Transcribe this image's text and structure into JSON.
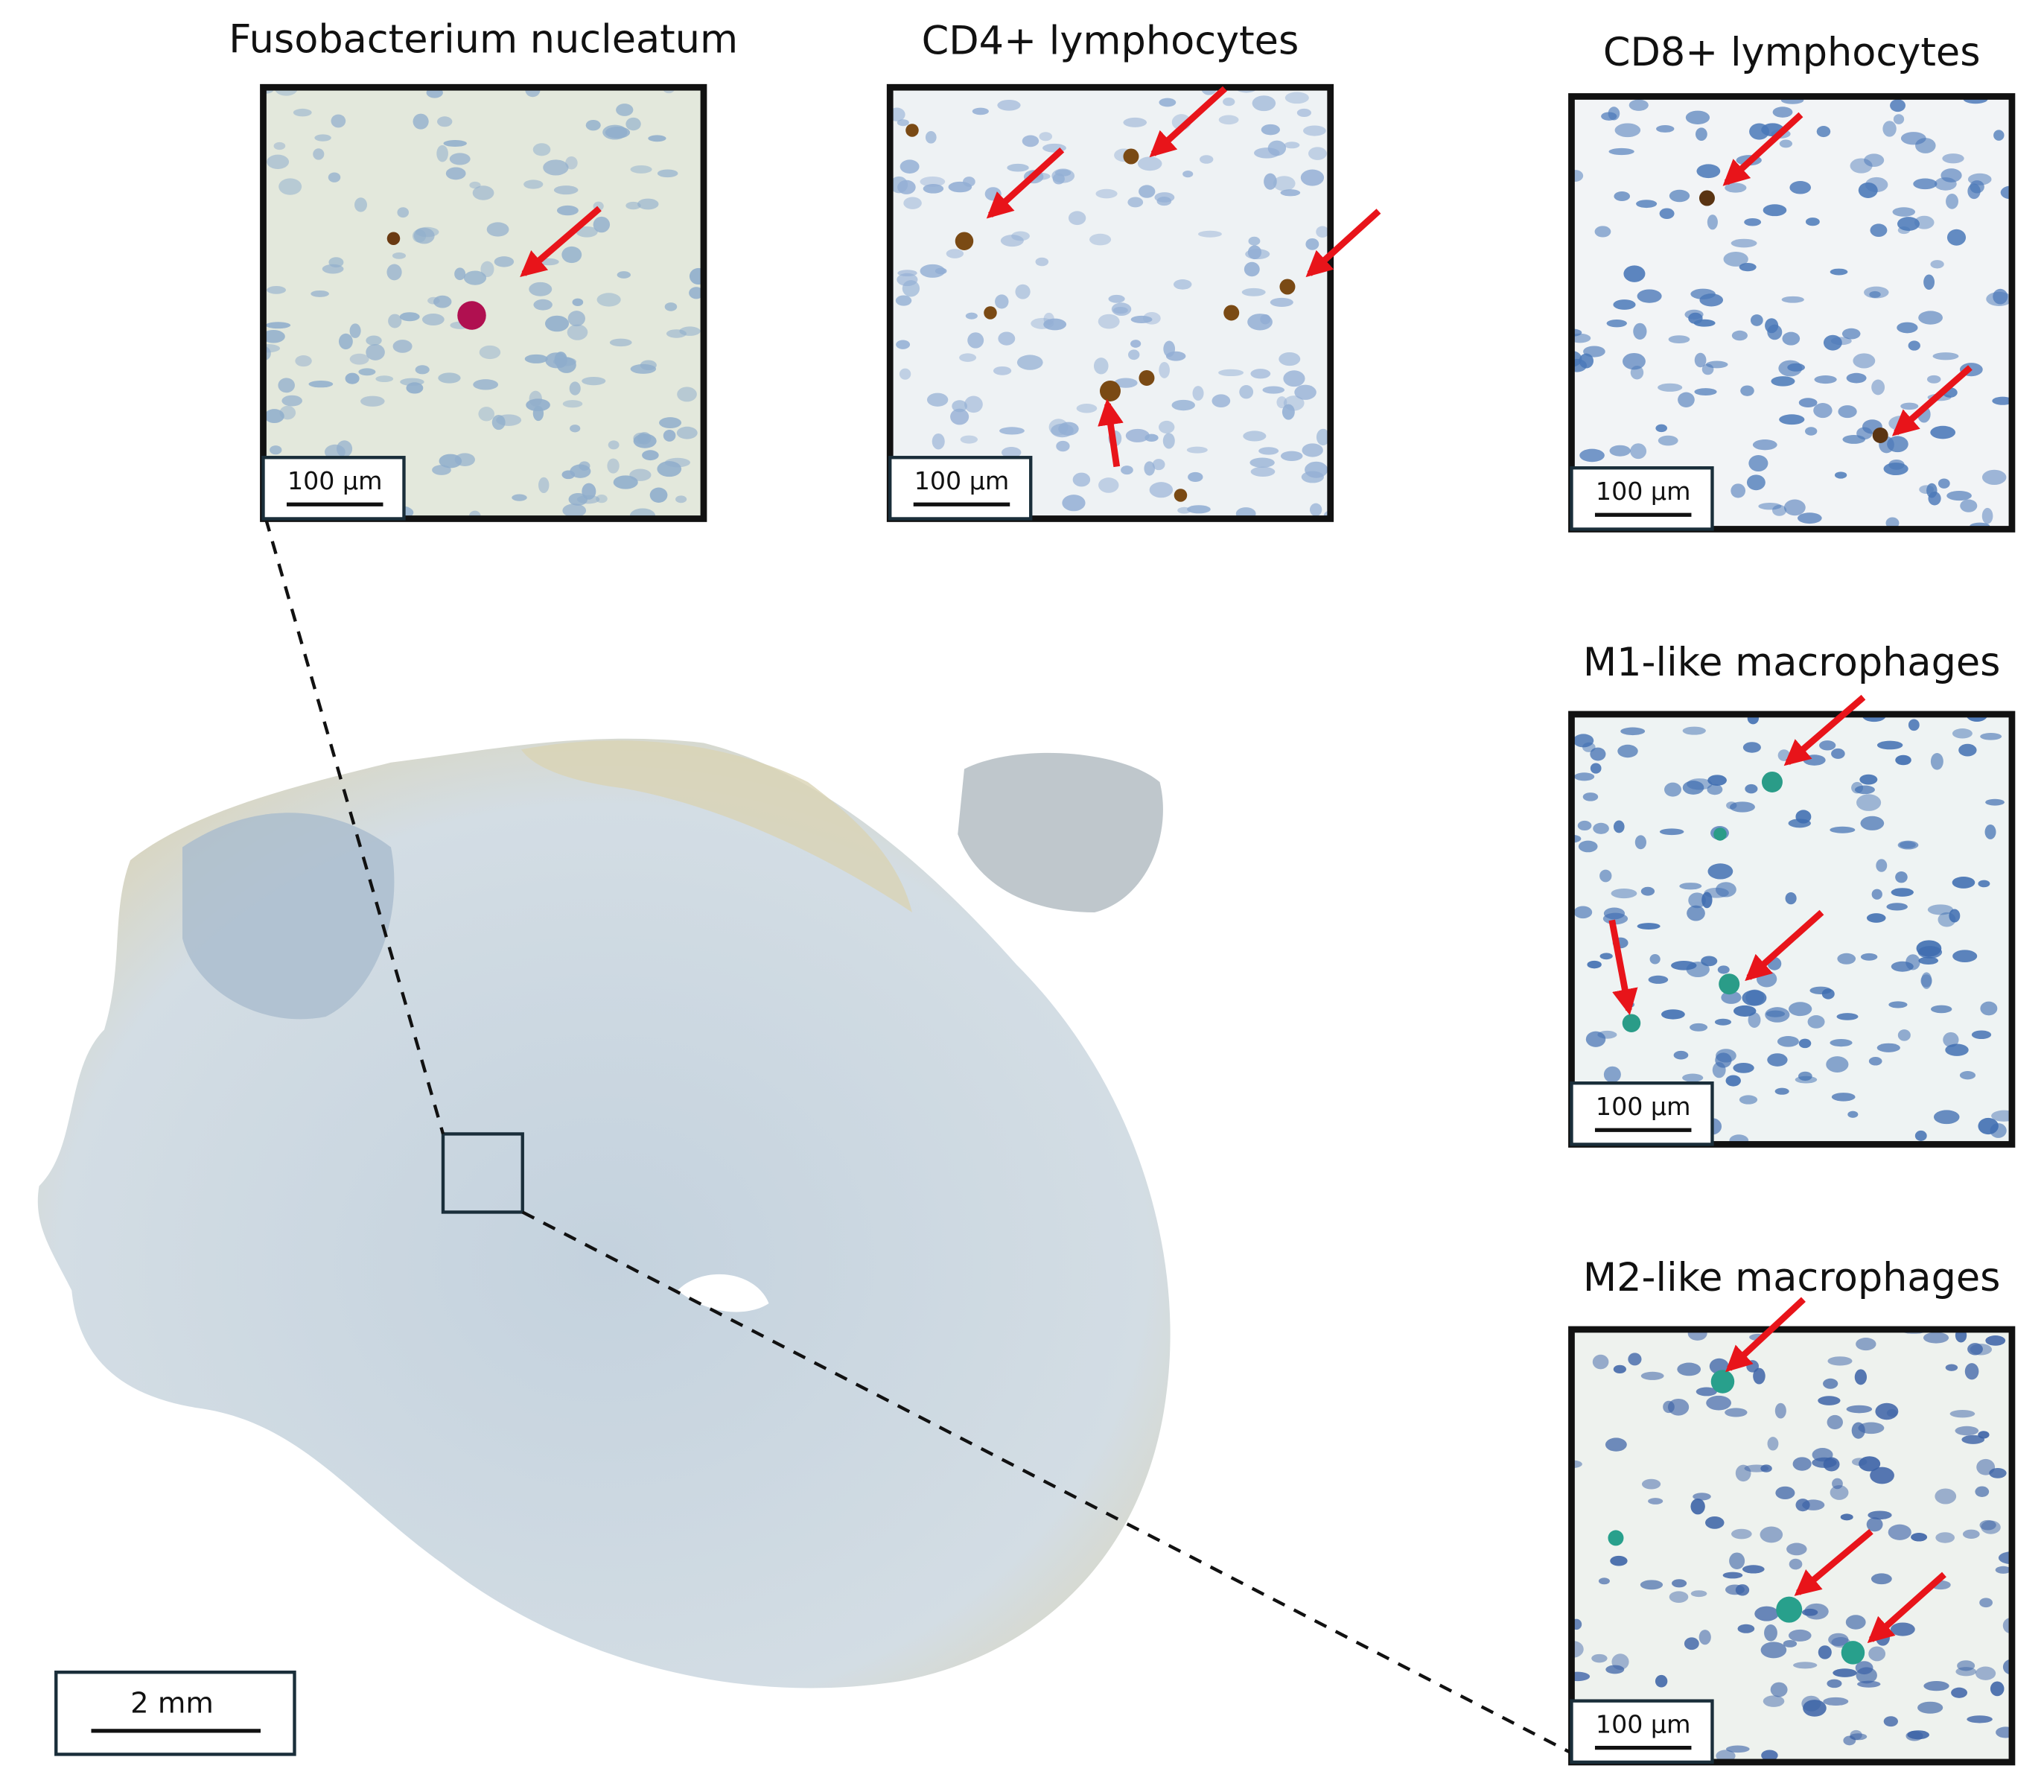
{
  "panels": [
    {
      "title": "Fusobacterium nucleatum",
      "scale_bar": "100 µm"
    },
    {
      "title": "CD4+ lymphocytes",
      "scale_bar": "100 µm"
    },
    {
      "title": "CD8+ lymphocytes",
      "scale_bar": "100 µm"
    },
    {
      "title": "M1-like macrophages",
      "scale_bar": "100 µm"
    },
    {
      "title": "M2-like macrophages",
      "scale_bar": "100 µm"
    }
  ],
  "overview": {
    "scale_bar": "2 mm"
  }
}
